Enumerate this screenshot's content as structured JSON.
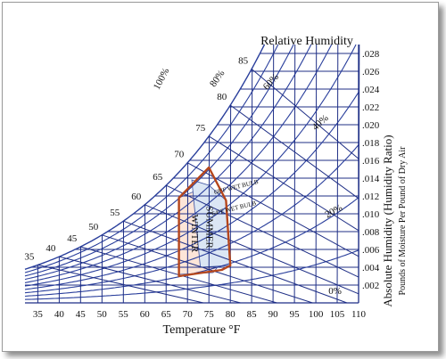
{
  "chart_data": {
    "type": "psychrometric",
    "title": "Relative Humidity",
    "xlabel": "Temperature",
    "xlabel_unit": "°F",
    "ylabel": "Absolute Humidity (Humidity Ratio)",
    "ylabel_sub": "Pounds of Moisture Per Pound of Dry Air",
    "x_ticks": [
      35,
      40,
      45,
      50,
      55,
      60,
      65,
      70,
      75,
      80,
      85,
      90,
      95,
      100,
      105,
      110
    ],
    "xlim": [
      32,
      110
    ],
    "y_ticks": [
      ".002",
      ".004",
      ".006",
      ".008",
      ".010",
      ".012",
      ".014",
      ".016",
      ".018",
      ".020",
      ".022",
      ".024",
      ".026",
      ".028"
    ],
    "y_values": [
      0.002,
      0.004,
      0.006,
      0.008,
      0.01,
      0.012,
      0.014,
      0.016,
      0.018,
      0.02,
      0.022,
      0.024,
      0.026,
      0.028
    ],
    "ylim": [
      0,
      0.029
    ],
    "saturation_labels": [
      35,
      40,
      45,
      50,
      55,
      60,
      65,
      70,
      75,
      80,
      85
    ],
    "rh_curves": [
      10,
      20,
      30,
      40,
      50,
      60,
      70,
      80,
      90
    ],
    "rh_labels": [
      "100%",
      "80%",
      "60%",
      "40%",
      "20%",
      "0%"
    ],
    "wet_bulb_labels": [
      "68°F WET BULB",
      "64°F WET BULB"
    ],
    "zones": [
      {
        "name": "WINTER",
        "fill": "#fde5d8",
        "points": [
          [
            68,
            0.0118
          ],
          [
            72,
            0.0126
          ],
          [
            75,
            0.0066
          ],
          [
            78,
            0.0046
          ],
          [
            76,
            0.0034
          ],
          [
            68,
            0.0032
          ]
        ]
      },
      {
        "name": "SUMMER",
        "fill": "#dbe6f4",
        "points": [
          [
            71,
            0.0138
          ],
          [
            75,
            0.0132
          ],
          [
            79,
            0.0115
          ],
          [
            80,
            0.0042
          ],
          [
            73,
            0.004
          ]
        ]
      }
    ],
    "outline": {
      "color": "#b5461c",
      "points": [
        [
          68,
          0.0118
        ],
        [
          75,
          0.0152
        ],
        [
          79,
          0.0115
        ],
        [
          80,
          0.0042
        ],
        [
          78,
          0.0037
        ],
        [
          68,
          0.003
        ]
      ]
    },
    "colors": {
      "grid": "#1f2f86",
      "curves": "#2a3f9c"
    }
  }
}
